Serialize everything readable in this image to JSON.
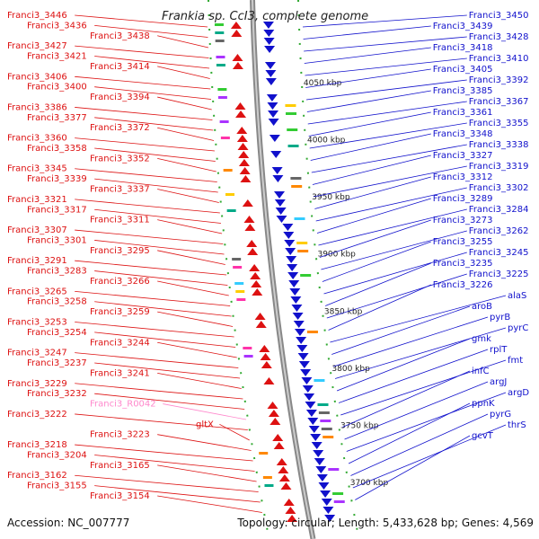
{
  "title": "Frankia sp. CcI3, complete genome",
  "accession": "Accession: NC_007777",
  "topology": "Topology: circular; Length: 5,433,628 bp; Genes: 4,569",
  "colors": {
    "left": "#dd1111",
    "right": "#1111cc",
    "pink": "#ff88cc",
    "backbone": "#888888",
    "tick": "#33aa33"
  },
  "kbp_marks": [
    {
      "label": "4050 kbp"
    },
    {
      "label": "4000 kbp"
    },
    {
      "label": "3950 kbp"
    },
    {
      "label": "3900 kbp"
    },
    {
      "label": "3850 kbp"
    },
    {
      "label": "3800 kbp"
    },
    {
      "label": "3750 kbp"
    },
    {
      "label": "3700 kbp"
    }
  ],
  "left_labels": [
    "Franci3_3446",
    "Franci3_3436",
    "Franci3_3438",
    "Franci3_3427",
    "Franci3_3421",
    "Franci3_3414",
    "Franci3_3406",
    "Franci3_3400",
    "Franci3_3394",
    "Franci3_3386",
    "Franci3_3377",
    "Franci3_3372",
    "Franci3_3360",
    "Franci3_3358",
    "Franci3_3352",
    "Franci3_3345",
    "Franci3_3339",
    "Franci3_3337",
    "Franci3_3321",
    "Franci3_3317",
    "Franci3_3311",
    "Franci3_3307",
    "Franci3_3301",
    "Franci3_3295",
    "Franci3_3291",
    "Franci3_3283",
    "Franci3_3266",
    "Franci3_3265",
    "Franci3_3258",
    "Franci3_3259",
    "Franci3_3253",
    "Franci3_3254",
    "Franci3_3244",
    "Franci3_3247",
    "Franci3_3237",
    "Franci3_3241",
    "Franci3_3229",
    "Franci3_3232",
    "Franci3_R0042",
    "Franci3_3222",
    "gltX",
    "Franci3_3223",
    "Franci3_3218",
    "Franci3_3204",
    "Franci3_3165",
    "Franci3_3162",
    "Franci3_3155",
    "Franci3_3154"
  ],
  "right_labels": [
    "Franci3_3450",
    "Franci3_3439",
    "Franci3_3428",
    "Franci3_3418",
    "Franci3_3410",
    "Franci3_3405",
    "Franci3_3392",
    "Franci3_3385",
    "Franci3_3367",
    "Franci3_3361",
    "Franci3_3355",
    "Franci3_3348",
    "Franci3_3338",
    "Franci3_3327",
    "Franci3_3319",
    "Franci3_3312",
    "Franci3_3302",
    "Franci3_3289",
    "Franci3_3284",
    "Franci3_3273",
    "Franci3_3262",
    "Franci3_3255",
    "Franci3_3245",
    "Franci3_3235",
    "Franci3_3225",
    "Franci3_3226",
    "alaS",
    "aroB",
    "pyrB",
    "pyrC",
    "gmk",
    "rplT",
    "fmt",
    "infC",
    "argJ",
    "argD",
    "ppnK",
    "pyrG",
    "thrS",
    "gcvT"
  ]
}
